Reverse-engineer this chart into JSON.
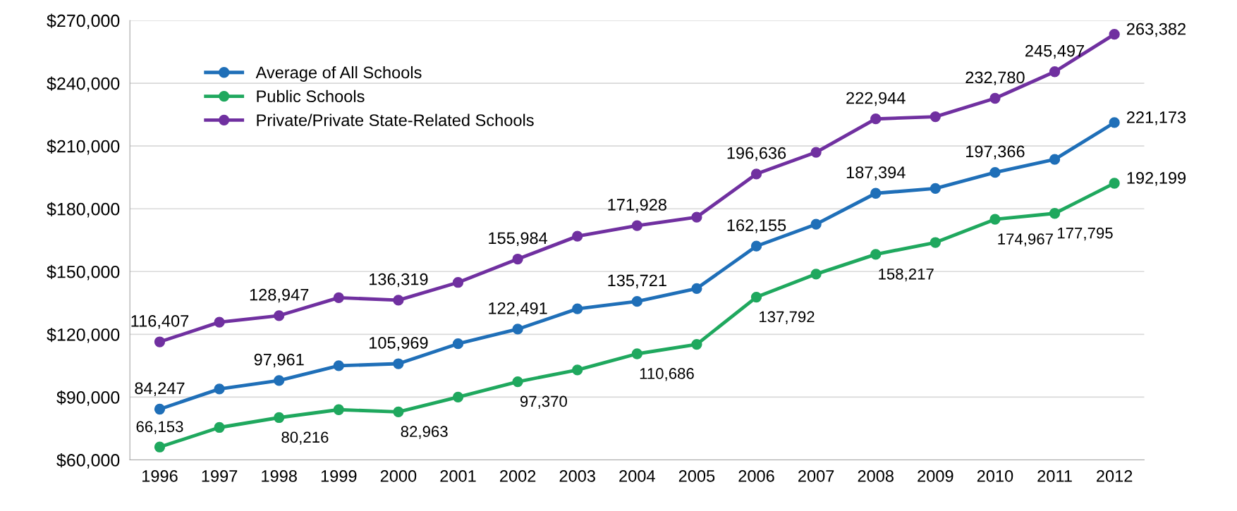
{
  "chart_data": {
    "type": "line",
    "categories": [
      "1996",
      "1997",
      "1998",
      "1999",
      "2000",
      "2001",
      "2002",
      "2003",
      "2004",
      "2005",
      "2006",
      "2007",
      "2008",
      "2009",
      "2010",
      "2011",
      "2012"
    ],
    "series": [
      {
        "name": "Average of All Schools",
        "color": "#1f6fb8",
        "values": [
          84247,
          93900,
          97961,
          105000,
          105969,
          115500,
          122491,
          132200,
          135721,
          141900,
          162155,
          172600,
          187394,
          189700,
          197366,
          203600,
          221173
        ],
        "value_labels": [
          "84,247",
          null,
          "97,961",
          null,
          "105,969",
          null,
          "122,491",
          null,
          "135,721",
          null,
          "162,155",
          null,
          "187,394",
          null,
          "197,366",
          null,
          "221,173"
        ]
      },
      {
        "name": "Public Schools",
        "color": "#1fa85e",
        "values": [
          66153,
          75500,
          80216,
          84000,
          82963,
          90000,
          97370,
          103000,
          110686,
          115200,
          137792,
          148800,
          158217,
          163900,
          174967,
          177795,
          192199
        ],
        "value_labels": [
          "66,153",
          null,
          "80,216",
          null,
          "82,963",
          null,
          "97,370",
          null,
          "110,686",
          null,
          "137,792",
          null,
          "158,217",
          null,
          "174,967",
          "177,795",
          "192,199"
        ]
      },
      {
        "name": "Private/Private State-Related Schools",
        "color": "#7030a0",
        "values": [
          116407,
          125800,
          128947,
          137500,
          136319,
          144800,
          155984,
          166900,
          171928,
          176000,
          196636,
          207000,
          222944,
          224000,
          232780,
          245497,
          263382
        ],
        "value_labels": [
          "116,407",
          null,
          "128,947",
          null,
          "136,319",
          null,
          "155,984",
          null,
          "171,928",
          null,
          "196,636",
          null,
          "222,944",
          null,
          "232,780",
          "245,497",
          "263,382"
        ]
      }
    ],
    "ylim": [
      60000,
      270000
    ],
    "yticks": [
      {
        "value": 60000,
        "label": "$60,000"
      },
      {
        "value": 90000,
        "label": "$90,000"
      },
      {
        "value": 120000,
        "label": "$120,000"
      },
      {
        "value": 150000,
        "label": "$150,000"
      },
      {
        "value": 180000,
        "label": "$180,000"
      },
      {
        "value": 210000,
        "label": "$210,000"
      },
      {
        "value": 240000,
        "label": "$240,000"
      },
      {
        "value": 270000,
        "label": "$270,000"
      }
    ],
    "grid": "y",
    "legend": "top left",
    "marker": "circle",
    "line_style": "solid"
  }
}
